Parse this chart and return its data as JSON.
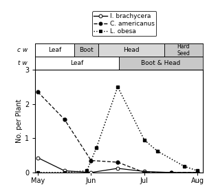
{
  "legend_labels": [
    "I. brachycera",
    "C. americanus",
    "L. obesa"
  ],
  "cw_stages": [
    {
      "label": "Leaf",
      "start": 0.0,
      "end": 0.235,
      "shaded": false
    },
    {
      "label": "Boot",
      "start": 0.235,
      "end": 0.375,
      "shaded": true
    },
    {
      "label": "Head",
      "start": 0.375,
      "end": 0.77,
      "shaded": true
    },
    {
      "label": "Hard\nSeed",
      "start": 0.77,
      "end": 1.0,
      "shaded": true
    }
  ],
  "tw_stages": [
    {
      "label": "Leaf",
      "start": 0.0,
      "end": 0.5,
      "shaded": false
    },
    {
      "label": "Boot & Head",
      "start": 0.5,
      "end": 1.0,
      "shaded": true
    }
  ],
  "x_ticks": [
    0,
    1,
    2,
    3
  ],
  "x_tick_labels": [
    "May",
    "Jun",
    "Jul",
    "Aug"
  ],
  "i_brachycera_x": [
    0.0,
    0.5,
    1.0,
    1.5,
    2.0,
    2.5,
    3.0
  ],
  "i_brachycera_y": [
    0.43,
    0.05,
    0.0,
    0.12,
    0.03,
    0.0,
    0.0
  ],
  "c_americanus_x": [
    0.0,
    0.5,
    1.0,
    1.5,
    2.0,
    2.5,
    3.0
  ],
  "c_americanus_y": [
    2.35,
    1.55,
    0.35,
    0.3,
    0.0,
    0.0,
    0.0
  ],
  "l_obesa_x": [
    0.0,
    0.5,
    0.92,
    1.1,
    1.5,
    2.0,
    2.25,
    2.75,
    3.0
  ],
  "l_obesa_y": [
    0.0,
    0.0,
    0.05,
    0.72,
    2.5,
    0.95,
    0.62,
    0.18,
    0.05
  ],
  "ylim": [
    0,
    3
  ],
  "ylabel": "No. per Plant",
  "yticks": [
    0,
    1,
    2,
    3
  ],
  "xlim": [
    -0.05,
    3.1
  ],
  "bar_shaded_color": "#c8c8c8",
  "bar_white_color": "#ffffff",
  "cw_head_color": "#d8d8d8"
}
